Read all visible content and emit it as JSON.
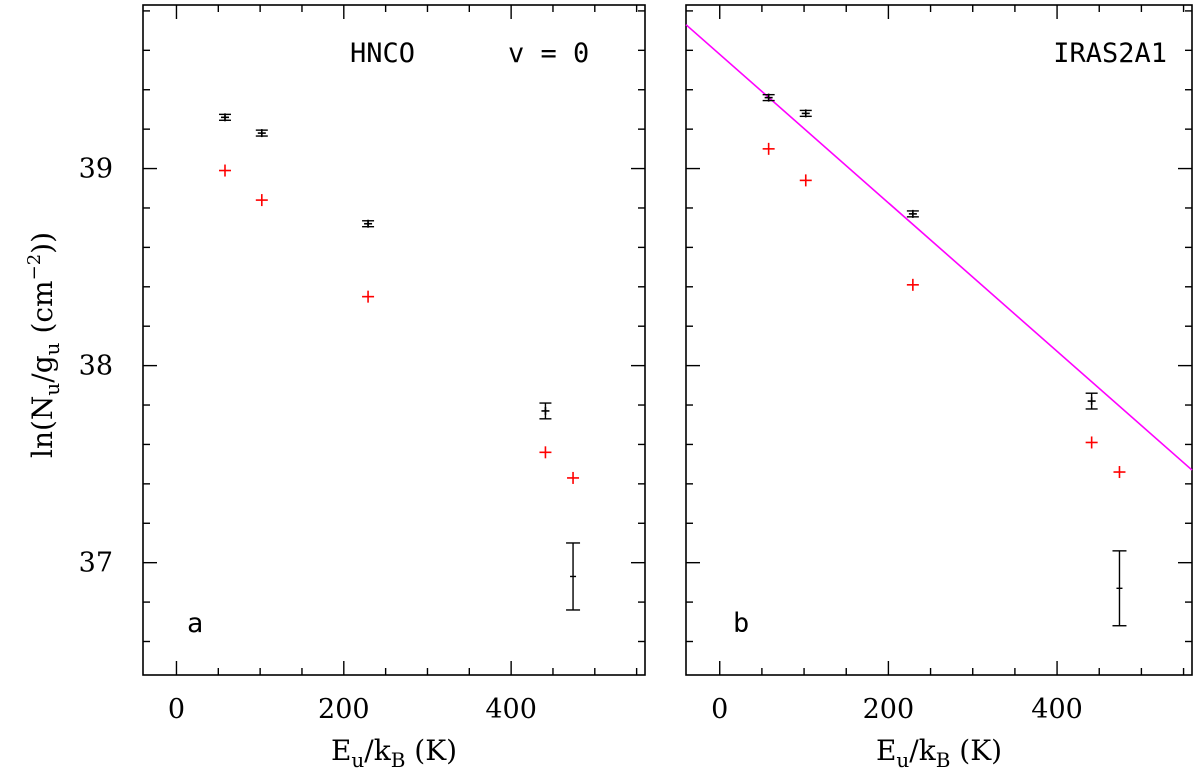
{
  "figure": {
    "ylabel_main": "ln(N",
    "ylabel_sub_u1": "u",
    "ylabel_slash": "/g",
    "ylabel_sub_u2": "u",
    "ylabel_unit": " (cm",
    "ylabel_exp": "−2",
    "ylabel_close": "))"
  },
  "chart_data": [
    {
      "type": "scatter",
      "panel_label": "a",
      "title": "HNCO",
      "subtitle": "v = 0",
      "xlabel_main": "E",
      "xlabel_sub1": "u",
      "xlabel_mid": "/k",
      "xlabel_sub2": "B",
      "xlabel_unit": " (K)",
      "xlim": [
        -40,
        560
      ],
      "ylim": [
        36.43,
        39.83
      ],
      "xticks": [
        0,
        200,
        400
      ],
      "yticks": [
        37,
        38,
        39
      ],
      "series": [
        {
          "name": "black",
          "color": "#000000",
          "x": [
            58,
            102,
            229,
            441
          ],
          "y": [
            39.26,
            39.18,
            38.72,
            37.77
          ],
          "err": [
            0.015,
            0.015,
            0.015,
            0.04
          ]
        },
        {
          "name": "red",
          "color": "#ff0000",
          "x": [
            58,
            102,
            229,
            441,
            474
          ],
          "y": [
            38.99,
            38.84,
            38.35,
            37.56,
            37.43
          ],
          "err": []
        }
      ],
      "representative_error": {
        "x": 474,
        "y": 36.93,
        "err": 0.17
      },
      "fit_line": null
    },
    {
      "type": "scatter",
      "panel_label": "b",
      "title": "IRAS2A1",
      "subtitle": "",
      "xlabel_main": "E",
      "xlabel_sub1": "u",
      "xlabel_mid": "/k",
      "xlabel_sub2": "B",
      "xlabel_unit": " (K)",
      "xlim": [
        -40,
        560
      ],
      "ylim": [
        36.43,
        39.83
      ],
      "xticks": [
        0,
        200,
        400
      ],
      "yticks": [
        37,
        38,
        39
      ],
      "series": [
        {
          "name": "black",
          "color": "#000000",
          "x": [
            58,
            102,
            229,
            441
          ],
          "y": [
            39.36,
            39.28,
            38.77,
            37.82
          ],
          "err": [
            0.015,
            0.015,
            0.015,
            0.04
          ]
        },
        {
          "name": "red",
          "color": "#ff0000",
          "x": [
            58,
            102,
            229,
            441,
            474
          ],
          "y": [
            39.1,
            38.94,
            38.41,
            37.61,
            37.46
          ],
          "err": []
        }
      ],
      "representative_error": {
        "x": 474,
        "y": 36.87,
        "err": 0.19
      },
      "fit_line": {
        "color": "#ff00ff",
        "x": [
          -40,
          560
        ],
        "y": [
          39.73,
          37.47
        ]
      }
    }
  ]
}
